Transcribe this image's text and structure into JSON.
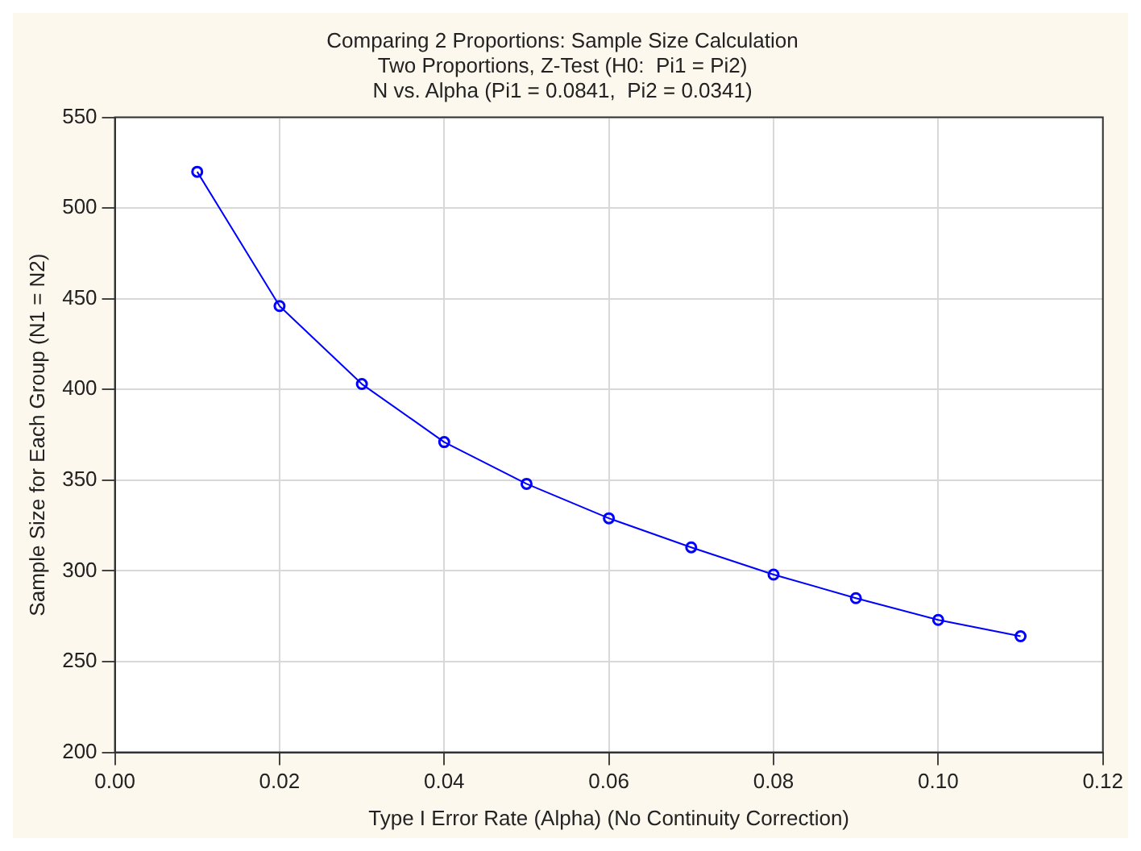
{
  "chart_data": {
    "type": "line",
    "title": [
      "Comparing 2 Proportions: Sample Size Calculation",
      "Two Proportions, Z-Test (H0:  Pi1 = Pi2)",
      "N vs. Alpha (Pi1 = 0.0841,  Pi2 = 0.0341)"
    ],
    "xlabel": "Type I Error Rate (Alpha) (No Continuity Correction)",
    "ylabel": "Sample Size for Each Group (N1 = N2)",
    "x": [
      0.01,
      0.02,
      0.03,
      0.04,
      0.05,
      0.06,
      0.07,
      0.08,
      0.09,
      0.1,
      0.11
    ],
    "series": [
      {
        "color": "#0000ff",
        "values": [
          520,
          446,
          403,
          371,
          348,
          329,
          313,
          298,
          285,
          273,
          264
        ]
      }
    ],
    "xlim": [
      0,
      0.12
    ],
    "xticks": [
      {
        "value": 0,
        "label": "0.00"
      },
      {
        "value": 0.02,
        "label": "0.02"
      },
      {
        "value": 0.04,
        "label": "0.04"
      },
      {
        "value": 0.06,
        "label": "0.06"
      },
      {
        "value": 0.08,
        "label": "0.08"
      },
      {
        "value": 0.1,
        "label": "0.10"
      },
      {
        "value": 0.12,
        "label": "0.12"
      }
    ],
    "ylim": [
      200,
      550
    ],
    "yticks": [
      200,
      250,
      300,
      350,
      400,
      450,
      500,
      550
    ],
    "grid": true,
    "marker": "circle",
    "line_style": "solid",
    "legend": false
  }
}
